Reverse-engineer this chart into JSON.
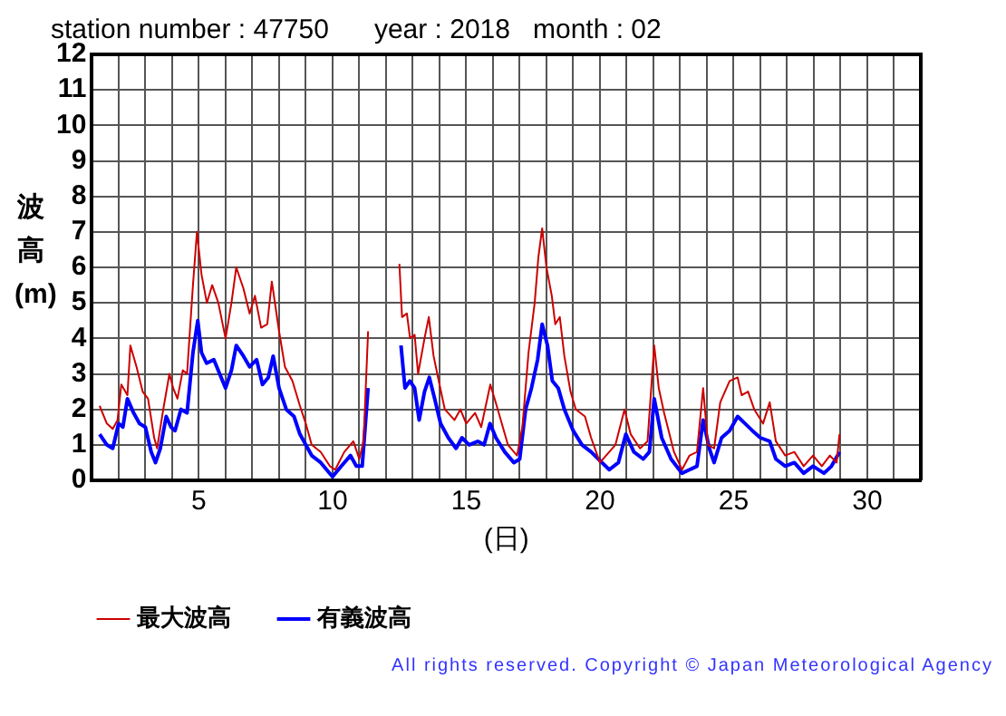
{
  "chart_data": {
    "type": "line",
    "title": "station number : 47750      year : 2018   month : 02",
    "xlabel": "(日)",
    "ylabel": "波高(m)",
    "xlim": [
      1,
      32
    ],
    "xticks": [
      {
        "value": 1,
        "label": null
      },
      {
        "value": 2,
        "label": null
      },
      {
        "value": 3,
        "label": null
      },
      {
        "value": 4,
        "label": null
      },
      5,
      {
        "value": 6,
        "label": null
      },
      {
        "value": 7,
        "label": null
      },
      {
        "value": 8,
        "label": null
      },
      {
        "value": 9,
        "label": null
      },
      10,
      {
        "value": 11,
        "label": null
      },
      {
        "value": 12,
        "label": null
      },
      {
        "value": 13,
        "label": null
      },
      {
        "value": 14,
        "label": null
      },
      15,
      {
        "value": 16,
        "label": null
      },
      {
        "value": 17,
        "label": null
      },
      {
        "value": 18,
        "label": null
      },
      {
        "value": 19,
        "label": null
      },
      20,
      {
        "value": 21,
        "label": null
      },
      {
        "value": 22,
        "label": null
      },
      {
        "value": 23,
        "label": null
      },
      {
        "value": 24,
        "label": null
      },
      25,
      {
        "value": 26,
        "label": null
      },
      {
        "value": 27,
        "label": null
      },
      {
        "value": 28,
        "label": null
      },
      {
        "value": 29,
        "label": null
      },
      30,
      {
        "value": 31,
        "label": null
      },
      {
        "value": 32,
        "label": null
      }
    ],
    "ylim": [
      0,
      12
    ],
    "yticks": [
      0,
      1,
      2,
      3,
      4,
      5,
      6,
      7,
      8,
      9,
      10,
      11,
      12
    ],
    "grid": true,
    "legend": "bottom",
    "marker": "none",
    "line_style": "solid",
    "series": [
      {
        "name": "最大波高",
        "color": "#cc0000",
        "x": [
          1.29,
          1.56,
          1.78,
          1.96,
          2.1,
          2.33,
          2.44,
          2.67,
          2.9,
          3.1,
          3.33,
          3.44,
          3.67,
          3.9,
          4.04,
          4.2,
          4.4,
          4.56,
          4.78,
          4.93,
          5.1,
          5.3,
          5.5,
          5.73,
          6.0,
          6.22,
          6.4,
          6.67,
          6.9,
          7.1,
          7.33,
          7.56,
          7.73,
          8.0,
          8.22,
          8.5,
          8.78,
          9.0,
          9.22,
          9.56,
          9.9,
          10.1,
          10.44,
          10.78,
          11.0,
          11.16,
          11.33,
          12.0,
          12.5,
          12.6,
          12.78,
          12.9,
          13.07,
          13.2,
          13.44,
          13.6,
          13.78,
          14.0,
          14.2,
          14.56,
          14.78,
          15.0,
          15.33,
          15.56,
          15.9,
          16.1,
          16.33,
          16.56,
          16.9,
          17.1,
          17.33,
          17.56,
          17.7,
          17.84,
          18.0,
          18.2,
          18.33,
          18.5,
          18.67,
          18.9,
          19.1,
          19.44,
          19.67,
          20.0,
          20.23,
          20.58,
          20.92,
          21.15,
          21.5,
          21.78,
          22.03,
          22.2,
          22.4,
          22.77,
          23.07,
          23.35,
          23.63,
          23.86,
          24.04,
          24.27,
          24.5,
          24.85,
          25.15,
          25.3,
          25.54,
          25.77,
          26.1,
          26.35,
          26.58,
          26.93,
          27.27,
          27.62,
          27.97,
          28.3,
          28.6,
          28.85,
          28.96
        ],
        "values": [
          2.1,
          1.6,
          1.45,
          1.7,
          2.7,
          2.4,
          3.8,
          3.2,
          2.5,
          2.3,
          1.2,
          0.9,
          2.0,
          3.0,
          2.6,
          2.3,
          3.1,
          3.0,
          5.5,
          7.0,
          5.8,
          5.0,
          5.5,
          5.0,
          4.0,
          5.0,
          6.0,
          5.4,
          4.7,
          5.2,
          4.3,
          4.4,
          5.6,
          4.2,
          3.2,
          2.8,
          2.1,
          1.6,
          1.0,
          0.8,
          0.4,
          0.3,
          0.8,
          1.1,
          0.6,
          1.1,
          4.2,
          null,
          6.1,
          4.6,
          4.7,
          4.0,
          4.1,
          3.0,
          4.0,
          4.6,
          3.5,
          2.7,
          2.0,
          1.7,
          2.0,
          1.6,
          1.9,
          1.5,
          2.7,
          2.2,
          1.6,
          1.0,
          0.7,
          1.5,
          3.6,
          5.0,
          6.3,
          7.1,
          6.0,
          5.2,
          4.4,
          4.6,
          3.5,
          2.5,
          2.0,
          1.8,
          1.2,
          0.5,
          0.7,
          1.0,
          2.0,
          1.3,
          0.9,
          1.1,
          3.8,
          2.6,
          1.9,
          0.8,
          0.3,
          0.7,
          0.8,
          2.6,
          1.0,
          0.9,
          2.2,
          2.8,
          2.9,
          2.4,
          2.5,
          2.0,
          1.6,
          2.2,
          1.1,
          0.7,
          0.8,
          0.4,
          0.7,
          0.4,
          0.7,
          0.5,
          1.3
        ]
      },
      {
        "name": "有義波高",
        "color": "#0000ff",
        "x": [
          1.29,
          1.56,
          1.78,
          2.0,
          2.16,
          2.33,
          2.56,
          2.78,
          3.0,
          3.22,
          3.38,
          3.56,
          3.78,
          3.96,
          4.11,
          4.33,
          4.56,
          4.78,
          4.96,
          5.1,
          5.29,
          5.56,
          5.78,
          6.0,
          6.22,
          6.4,
          6.67,
          6.9,
          7.16,
          7.38,
          7.6,
          7.78,
          8.0,
          8.27,
          8.56,
          8.78,
          9.0,
          9.22,
          9.56,
          10.0,
          10.33,
          10.67,
          10.89,
          11.11,
          11.33,
          12.0,
          12.56,
          12.71,
          12.89,
          13.07,
          13.24,
          13.44,
          13.62,
          13.82,
          14.04,
          14.33,
          14.62,
          14.84,
          15.11,
          15.44,
          15.67,
          15.89,
          16.11,
          16.44,
          16.78,
          17.0,
          17.22,
          17.44,
          17.67,
          17.84,
          18.04,
          18.22,
          18.44,
          18.67,
          19.0,
          19.33,
          19.67,
          20.35,
          20.69,
          20.97,
          21.27,
          21.62,
          21.85,
          22.03,
          22.31,
          22.66,
          23.07,
          23.35,
          23.63,
          23.86,
          24.09,
          24.27,
          24.55,
          24.85,
          25.15,
          25.43,
          25.7,
          26.0,
          26.35,
          26.58,
          26.93,
          27.27,
          27.62,
          27.97,
          28.38,
          28.66,
          28.96
        ],
        "values": [
          1.3,
          1.0,
          0.9,
          1.6,
          1.5,
          2.3,
          1.9,
          1.6,
          1.5,
          0.8,
          0.5,
          0.9,
          1.8,
          1.5,
          1.4,
          2.0,
          1.9,
          3.6,
          4.5,
          3.6,
          3.3,
          3.4,
          3.0,
          2.6,
          3.1,
          3.8,
          3.5,
          3.2,
          3.4,
          2.7,
          2.9,
          3.5,
          2.6,
          2.0,
          1.8,
          1.3,
          1.0,
          0.7,
          0.5,
          0.1,
          0.4,
          0.7,
          0.4,
          0.4,
          2.6,
          null,
          3.8,
          2.6,
          2.8,
          2.6,
          1.7,
          2.5,
          2.9,
          2.3,
          1.6,
          1.2,
          0.9,
          1.2,
          1.0,
          1.1,
          1.0,
          1.6,
          1.2,
          0.8,
          0.5,
          0.6,
          2.0,
          2.6,
          3.4,
          4.4,
          3.8,
          2.8,
          2.6,
          2.0,
          1.4,
          1.0,
          0.8,
          0.3,
          0.5,
          1.3,
          0.8,
          0.6,
          0.8,
          2.3,
          1.2,
          0.6,
          0.2,
          0.3,
          0.4,
          1.7,
          0.9,
          0.5,
          1.2,
          1.4,
          1.8,
          1.6,
          1.4,
          1.2,
          1.1,
          0.6,
          0.4,
          0.5,
          0.2,
          0.4,
          0.2,
          0.4,
          0.8
        ]
      }
    ],
    "annotations": [
      "All rights reserved. Copyright © Japan Meteorological Agency"
    ]
  }
}
